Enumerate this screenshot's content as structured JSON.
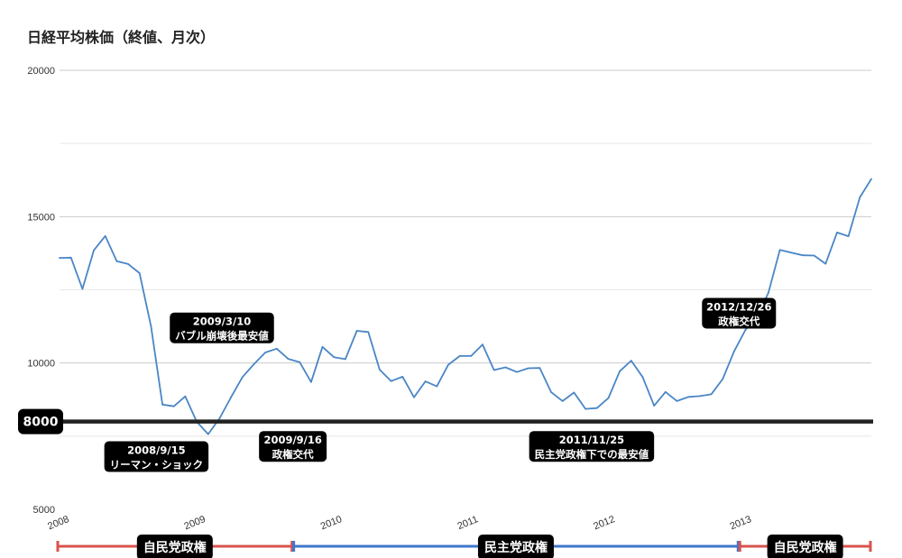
{
  "chart_data": {
    "type": "line",
    "title": "日経平均株価（終値、月次）",
    "ylim": [
      5000,
      20000
    ],
    "yticks": [
      5000,
      10000,
      15000,
      20000
    ],
    "xlim": [
      2008.0,
      2013.95
    ],
    "xticks": [
      {
        "label": "2008",
        "x": 2008
      },
      {
        "label": "2009",
        "x": 2009
      },
      {
        "label": "2010",
        "x": 2010
      },
      {
        "label": "2011",
        "x": 2011
      },
      {
        "label": "2012",
        "x": 2012
      },
      {
        "label": "2013",
        "x": 2013
      }
    ],
    "grid": true,
    "series": [
      {
        "color": "#4a86c5",
        "values": [
          13590,
          13600,
          12530,
          13850,
          14340,
          13480,
          13380,
          13070,
          11260,
          8580,
          8520,
          8860,
          7990,
          7570,
          8110,
          8830,
          9520,
          9960,
          10360,
          10490,
          10140,
          10030,
          9350,
          10550,
          10200,
          10130,
          11100,
          11060,
          9770,
          9380,
          9530,
          8830,
          9370,
          9200,
          9940,
          10240,
          10240,
          10630,
          9760,
          9850,
          9690,
          9820,
          9830,
          9000,
          8700,
          8990,
          8430,
          8460,
          8800,
          9720,
          10080,
          9520,
          8540,
          9010,
          8700,
          8840,
          8870,
          8930,
          9450,
          10400,
          11140,
          11560,
          12400,
          13860,
          13770,
          13680,
          13670,
          13390,
          14460,
          14330,
          15660,
          16290
        ]
      }
    ],
    "reference_line": {
      "value": 8000,
      "label": "8000",
      "color": "#222222"
    },
    "annotations": [
      {
        "lines": [
          "2009/3/10",
          "バブル崩壊後最安値"
        ],
        "x": 2009.19,
        "y": 11200
      },
      {
        "lines": [
          "2008/9/15",
          "リーマン・ショック"
        ],
        "x": 2008.71,
        "y": 6800
      },
      {
        "lines": [
          "2009/9/16",
          "政権交代"
        ],
        "x": 2009.71,
        "y": 7150
      },
      {
        "lines": [
          "2011/11/25",
          "民主党政権下での最安値"
        ],
        "x": 2011.9,
        "y": 7150
      },
      {
        "lines": [
          "2012/12/26",
          "政権交代"
        ],
        "x": 2012.98,
        "y": 11700
      }
    ],
    "eras": [
      {
        "label": "自民党政権",
        "start": 2008.0,
        "end": 2009.71,
        "color": "#d9534f"
      },
      {
        "label": "民主党政権",
        "start": 2009.71,
        "end": 2012.98,
        "color": "#3f77cc"
      },
      {
        "label": "自民党政権",
        "start": 2012.98,
        "end": 2013.95,
        "color": "#d9534f"
      }
    ]
  }
}
